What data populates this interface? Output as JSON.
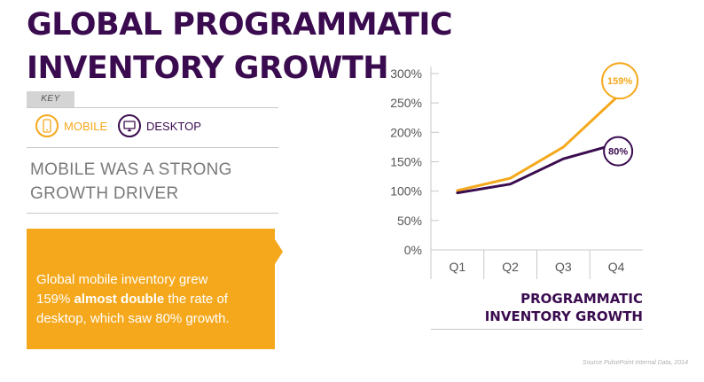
{
  "title": {
    "line1": "GLOBAL PROGRAMMATIC",
    "line2": "INVENTORY GROWTH"
  },
  "key": {
    "badge": "KEY",
    "mobile_label": "MOBILE",
    "desktop_label": "DESKTOP",
    "mobile_icon": "smartphone-icon",
    "desktop_icon": "monitor-icon"
  },
  "subhead": {
    "line1": "MOBILE WAS A STRONG",
    "line2": "GROWTH DRIVER"
  },
  "callout": {
    "line1": "Global mobile inventory grew",
    "line2_prefix": "159%",
    "line2_bold": "almost double",
    "line2_suffix": "the rate of",
    "line3": "desktop, which saw 80% growth."
  },
  "chart_caption": {
    "line1": "PROGRAMMATIC",
    "line2": "INVENTORY GROWTH"
  },
  "source": "Source PulsePoint Internal Data, 2014",
  "colors": {
    "mobile": "#f5a81c",
    "desktop": "#3a0b4f",
    "title": "#3a0b4f",
    "grid": "#c8c8c8"
  },
  "chart_data": {
    "type": "line",
    "categories": [
      "Q1",
      "Q2",
      "Q3",
      "Q4"
    ],
    "yticks": [
      "0%",
      "50%",
      "100%",
      "150%",
      "200%",
      "250%",
      "300%"
    ],
    "ylim": [
      0,
      300
    ],
    "series": [
      {
        "name": "MOBILE",
        "values": [
          101,
          122,
          175,
          259
        ],
        "end_label": "159%"
      },
      {
        "name": "DESKTOP",
        "values": [
          97,
          112,
          155,
          180
        ],
        "end_label": "80%"
      }
    ],
    "grid": "horizontal-left-bracket",
    "legend": "left-panel"
  }
}
